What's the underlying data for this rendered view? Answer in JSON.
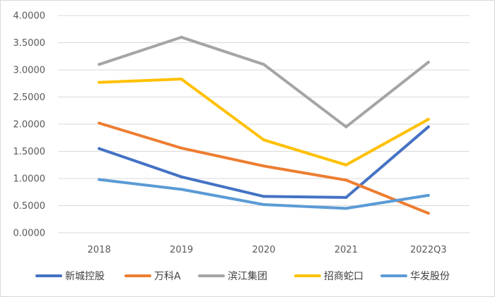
{
  "chart_data": {
    "type": "line",
    "title": "",
    "xlabel": "",
    "ylabel": "",
    "categories": [
      "2018",
      "2019",
      "2020",
      "2021",
      "2022Q3"
    ],
    "ylim": [
      0,
      4
    ],
    "yticks": [
      "0.0000",
      "0.5000",
      "1.0000",
      "1.5000",
      "2.0000",
      "2.5000",
      "3.0000",
      "3.5000",
      "4.0000"
    ],
    "ytick_values": [
      0,
      0.5,
      1.0,
      1.5,
      2.0,
      2.5,
      3.0,
      3.5,
      4.0
    ],
    "grid": true,
    "legend_position": "bottom",
    "series": [
      {
        "name": "新城控股",
        "color": "#4472C4",
        "values": [
          1.55,
          1.03,
          0.67,
          0.65,
          1.95
        ]
      },
      {
        "name": "万科A",
        "color": "#ED7D31",
        "values": [
          2.02,
          1.56,
          1.23,
          0.97,
          0.36
        ]
      },
      {
        "name": "滨江集团",
        "color": "#A5A5A5",
        "values": [
          3.1,
          3.6,
          3.1,
          1.95,
          3.14
        ]
      },
      {
        "name": "招商蛇口",
        "color": "#FFC000",
        "values": [
          2.77,
          2.83,
          1.71,
          1.25,
          2.09
        ]
      },
      {
        "name": "华发股份",
        "color": "#5B9BD5",
        "values": [
          0.98,
          0.8,
          0.52,
          0.45,
          0.69
        ]
      }
    ]
  }
}
